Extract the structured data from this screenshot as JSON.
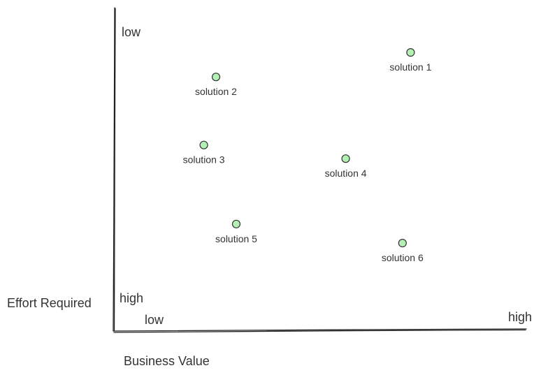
{
  "chart_data": {
    "type": "scatter",
    "title": "",
    "xlabel": "Business Value",
    "ylabel": "Effort Required",
    "x_tick_labels": {
      "start": "low",
      "end": "high"
    },
    "y_tick_labels": {
      "start": "low",
      "end": "high"
    },
    "y_inverted": true,
    "xlim": [
      0,
      10
    ],
    "ylim": [
      0,
      10
    ],
    "grid": false,
    "marker_color": "#b3f0b3",
    "marker_edge_color": "#333333",
    "points": [
      {
        "label": "solution 1",
        "x": 7.3,
        "y": 0.9
      },
      {
        "label": "solution 2",
        "x": 2.5,
        "y": 1.8
      },
      {
        "label": "solution 3",
        "x": 2.2,
        "y": 4.3
      },
      {
        "label": "solution 4",
        "x": 5.7,
        "y": 4.8
      },
      {
        "label": "solution 5",
        "x": 3.0,
        "y": 7.2
      },
      {
        "label": "solution 6",
        "x": 7.1,
        "y": 7.9
      }
    ]
  }
}
